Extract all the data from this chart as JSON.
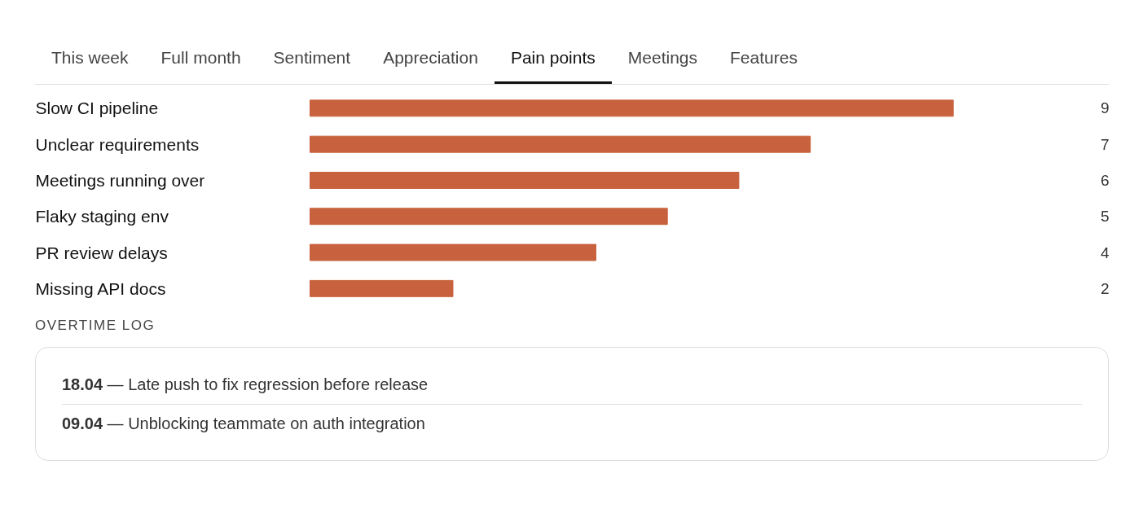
{
  "chart_data": {
    "type": "bar",
    "orientation": "horizontal",
    "categories": [
      "Slow CI pipeline",
      "Unclear requirements",
      "Meetings running over",
      "Flaky staging env",
      "PR review delays",
      "Missing API docs"
    ],
    "values": [
      9,
      7,
      6,
      5,
      4,
      2
    ],
    "color": "#c8623e",
    "data_labels": true,
    "annotations": [
      "This week",
      "Full month",
      "Sentiment",
      "Appreciation",
      "Pain points",
      "Meetings",
      "Features",
      "OVERTIME LOG",
      "18.04 — Late push to fix regression before release",
      "09.04 — Unblocking teammate on auth integration"
    ]
  }
}
